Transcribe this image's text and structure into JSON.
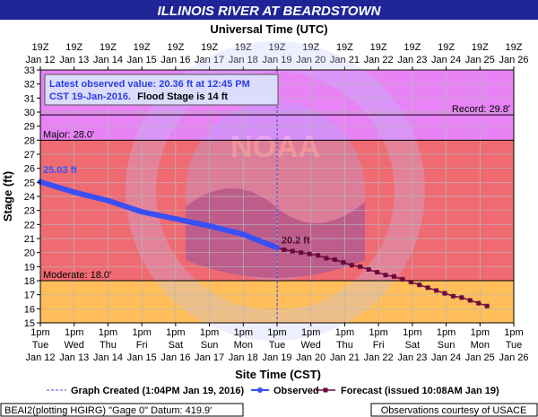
{
  "chart_data": {
    "type": "line",
    "title": "ILLINOIS RIVER AT BEARDSTOWN",
    "top_axis_title": "Universal Time (UTC)",
    "xlabel": "Site Time (CST)",
    "ylabel": "Stage (ft)",
    "ylim": [
      15,
      33
    ],
    "yticks": [
      15,
      16,
      17,
      18,
      19,
      20,
      21,
      22,
      23,
      24,
      25,
      26,
      27,
      28,
      29,
      30,
      31,
      32,
      33
    ],
    "xlim": [
      "2016-01-12T13:00",
      "2016-01-26T13:00"
    ],
    "grid": true,
    "bottom_ticks": [
      {
        "time": "1pm",
        "day": "Tue",
        "date": "Jan 12"
      },
      {
        "time": "1pm",
        "day": "Wed",
        "date": "Jan 13"
      },
      {
        "time": "1pm",
        "day": "Thu",
        "date": "Jan 14"
      },
      {
        "time": "1pm",
        "day": "Fri",
        "date": "Jan 15"
      },
      {
        "time": "1pm",
        "day": "Sat",
        "date": "Jan 16"
      },
      {
        "time": "1pm",
        "day": "Sun",
        "date": "Jan 17"
      },
      {
        "time": "1pm",
        "day": "Mon",
        "date": "Jan 18"
      },
      {
        "time": "1pm",
        "day": "Tue",
        "date": "Jan 19"
      },
      {
        "time": "1pm",
        "day": "Wed",
        "date": "Jan 20"
      },
      {
        "time": "1pm",
        "day": "Thu",
        "date": "Jan 21"
      },
      {
        "time": "1pm",
        "day": "Fri",
        "date": "Jan 22"
      },
      {
        "time": "1pm",
        "day": "Sat",
        "date": "Jan 23"
      },
      {
        "time": "1pm",
        "day": "Sun",
        "date": "Jan 24"
      },
      {
        "time": "1pm",
        "day": "Mon",
        "date": "Jan 25"
      },
      {
        "time": "1pm",
        "day": "Tue",
        "date": "Jan 26"
      }
    ],
    "top_ticks": [
      {
        "time": "19Z",
        "date": "Jan 12"
      },
      {
        "time": "19Z",
        "date": "Jan 13"
      },
      {
        "time": "19Z",
        "date": "Jan 14"
      },
      {
        "time": "19Z",
        "date": "Jan 15"
      },
      {
        "time": "19Z",
        "date": "Jan 16"
      },
      {
        "time": "19Z",
        "date": "Jan 17"
      },
      {
        "time": "19Z",
        "date": "Jan 18"
      },
      {
        "time": "19Z",
        "date": "Jan 19"
      },
      {
        "time": "19Z",
        "date": "Jan 20"
      },
      {
        "time": "19Z",
        "date": "Jan 21"
      },
      {
        "time": "19Z",
        "date": "Jan 22"
      },
      {
        "time": "19Z",
        "date": "Jan 23"
      },
      {
        "time": "19Z",
        "date": "Jan 24"
      },
      {
        "time": "19Z",
        "date": "Jan 25"
      },
      {
        "time": "19Z",
        "date": "Jan 26"
      }
    ],
    "flood_categories": [
      {
        "label": "Moderate: 18.0'",
        "stage": 18.0,
        "color": "#f1a25e"
      },
      {
        "label": "Major: 28.0'",
        "stage": 28.0,
        "color": "#f06a72"
      },
      {
        "label": "Record: 29.8'",
        "stage": 29.8,
        "color": "#e070e8"
      }
    ],
    "band_colors": {
      "below_moderate": "#ffbe5a",
      "moderate_major": "#f06a72",
      "above_major": "#e783f5"
    },
    "flood_stage": 14,
    "series": [
      {
        "name": "Observed",
        "color": "#3a4ff5",
        "points": [
          {
            "x": "2016-01-12T13:00",
            "y": 25.03
          },
          {
            "x": "2016-01-13T13:00",
            "y": 24.3
          },
          {
            "x": "2016-01-14T13:00",
            "y": 23.7
          },
          {
            "x": "2016-01-15T13:00",
            "y": 22.9
          },
          {
            "x": "2016-01-16T13:00",
            "y": 22.4
          },
          {
            "x": "2016-01-17T13:00",
            "y": 21.9
          },
          {
            "x": "2016-01-18T13:00",
            "y": 21.3
          },
          {
            "x": "2016-01-19T12:45",
            "y": 20.36
          }
        ]
      },
      {
        "name": "Forecast (issued 10:08AM Jan 19)",
        "color": "#6a0a3c",
        "points": [
          {
            "x": "2016-01-19T18:00",
            "y": 20.2
          },
          {
            "x": "2016-01-20T00:00",
            "y": 20.1
          },
          {
            "x": "2016-01-20T06:00",
            "y": 20.0
          },
          {
            "x": "2016-01-20T12:00",
            "y": 19.9
          },
          {
            "x": "2016-01-20T18:00",
            "y": 19.8
          },
          {
            "x": "2016-01-21T00:00",
            "y": 19.6
          },
          {
            "x": "2016-01-21T06:00",
            "y": 19.5
          },
          {
            "x": "2016-01-21T12:00",
            "y": 19.3
          },
          {
            "x": "2016-01-21T18:00",
            "y": 19.1
          },
          {
            "x": "2016-01-22T00:00",
            "y": 19.0
          },
          {
            "x": "2016-01-22T06:00",
            "y": 18.8
          },
          {
            "x": "2016-01-22T12:00",
            "y": 18.6
          },
          {
            "x": "2016-01-22T18:00",
            "y": 18.4
          },
          {
            "x": "2016-01-23T00:00",
            "y": 18.3
          },
          {
            "x": "2016-01-23T06:00",
            "y": 18.1
          },
          {
            "x": "2016-01-23T12:00",
            "y": 17.9
          },
          {
            "x": "2016-01-23T18:00",
            "y": 17.7
          },
          {
            "x": "2016-01-24T00:00",
            "y": 17.5
          },
          {
            "x": "2016-01-24T06:00",
            "y": 17.3
          },
          {
            "x": "2016-01-24T12:00",
            "y": 17.1
          },
          {
            "x": "2016-01-24T18:00",
            "y": 16.9
          },
          {
            "x": "2016-01-25T00:00",
            "y": 16.8
          },
          {
            "x": "2016-01-25T06:00",
            "y": 16.6
          },
          {
            "x": "2016-01-25T12:00",
            "y": 16.4
          },
          {
            "x": "2016-01-25T18:00",
            "y": 16.2
          }
        ]
      }
    ],
    "graph_created": "2016-01-19T13:04",
    "annotations": {
      "first_observed": "25.03 ft",
      "forecast_start": "20.2 ft"
    },
    "info_box": {
      "line1": "Latest observed value: 20.36 ft at 12:45 PM",
      "line2_blue": "CST 19-Jan-2016.",
      "line2_black": "Flood Stage is 14 ft"
    },
    "legend": {
      "graph_created": "Graph Created (1:04PM Jan 19, 2016)",
      "observed": "Observed",
      "forecast": "Forecast (issued 10:08AM Jan 19)"
    },
    "legend_placement": "bottom",
    "footer": {
      "left": "BEAI2(plotting HGIRG) \"Gage 0\" Datum: 419.9'",
      "right": "Observations courtesy of USACE"
    },
    "watermark_text": "NOAA"
  }
}
